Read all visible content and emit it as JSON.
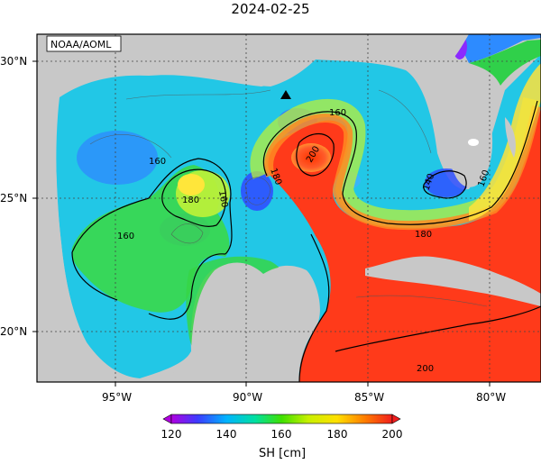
{
  "title": "2024-02-25",
  "credit": "NOAA/AOML",
  "lat_labels": [
    "30°N",
    "25°N",
    "20°N"
  ],
  "lon_labels": [
    "95°W",
    "90°W",
    "85°W",
    "80°W"
  ],
  "contour_labels": [
    "160",
    "160",
    "160",
    "160",
    "180",
    "180",
    "180",
    "200",
    "200",
    "140",
    "160"
  ],
  "colorbar": {
    "ticks": [
      "120",
      "140",
      "160",
      "180",
      "200"
    ],
    "label": "SH [cm]",
    "colors": [
      "#b000e0",
      "#3c3cff",
      "#00b4ff",
      "#00e0a0",
      "#40e000",
      "#c8f000",
      "#ffe000",
      "#ff9000",
      "#ff2a00",
      "#f02020"
    ]
  },
  "colors": {
    "land": "#c8c8c8",
    "low": "#1f6cff",
    "mid": "#28d7cf",
    "green": "#2bd832",
    "high": "#ff3a1a"
  },
  "marker": "triangle"
}
